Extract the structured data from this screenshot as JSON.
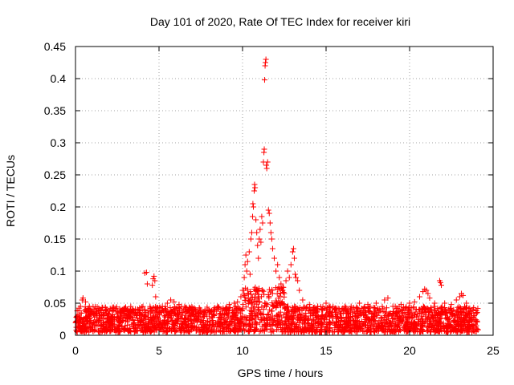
{
  "chart_data": {
    "type": "scatter",
    "title": "Day 101 of 2020, Rate Of TEC Index for receiver kiri",
    "xlabel": "GPS time / hours",
    "ylabel": "ROTI / TECUs",
    "xlim": [
      0,
      25
    ],
    "ylim": [
      0,
      0.45
    ],
    "x_ticks": [
      "0",
      "5",
      "10",
      "15",
      "20",
      "25"
    ],
    "y_ticks": [
      "0",
      "0.05",
      "0.1",
      "0.15",
      "0.2",
      "0.25",
      "0.3",
      "0.35",
      "0.4",
      "0.45"
    ],
    "grid": true,
    "marker": "+",
    "color": "#ff0000",
    "background": {
      "x_range": [
        0,
        24.1
      ],
      "band": [
        0.005,
        0.045
      ],
      "note": "dense band of points across the full day"
    },
    "series": [
      {
        "name": "ROTI",
        "points": [
          [
            0.1,
            0.038
          ],
          [
            0.3,
            0.045
          ],
          [
            0.4,
            0.055
          ],
          [
            0.45,
            0.058
          ],
          [
            0.6,
            0.052
          ],
          [
            0.8,
            0.042
          ],
          [
            1.5,
            0.04
          ],
          [
            2.3,
            0.042
          ],
          [
            2.8,
            0.04
          ],
          [
            3.5,
            0.038
          ],
          [
            4.15,
            0.097
          ],
          [
            4.25,
            0.098
          ],
          [
            4.3,
            0.08
          ],
          [
            4.6,
            0.078
          ],
          [
            4.65,
            0.088
          ],
          [
            4.7,
            0.092
          ],
          [
            4.75,
            0.085
          ],
          [
            4.8,
            0.06
          ],
          [
            5.2,
            0.045
          ],
          [
            5.5,
            0.05
          ],
          [
            5.7,
            0.055
          ],
          [
            5.9,
            0.052
          ],
          [
            6.2,
            0.048
          ],
          [
            7.0,
            0.04
          ],
          [
            7.8,
            0.038
          ],
          [
            8.5,
            0.045
          ],
          [
            9.2,
            0.048
          ],
          [
            9.5,
            0.05
          ],
          [
            9.7,
            0.052
          ],
          [
            9.9,
            0.06
          ],
          [
            10.0,
            0.07
          ],
          [
            10.1,
            0.09
          ],
          [
            10.15,
            0.11
          ],
          [
            10.2,
            0.125
          ],
          [
            10.25,
            0.1
          ],
          [
            10.3,
            0.115
          ],
          [
            10.4,
            0.13
          ],
          [
            10.45,
            0.095
          ],
          [
            10.5,
            0.15
          ],
          [
            10.55,
            0.16
          ],
          [
            10.6,
            0.185
          ],
          [
            10.62,
            0.205
          ],
          [
            10.65,
            0.2
          ],
          [
            10.7,
            0.225
          ],
          [
            10.72,
            0.235
          ],
          [
            10.75,
            0.23
          ],
          [
            10.8,
            0.18
          ],
          [
            10.85,
            0.16
          ],
          [
            10.9,
            0.14
          ],
          [
            10.95,
            0.12
          ],
          [
            11.0,
            0.15
          ],
          [
            11.05,
            0.165
          ],
          [
            11.1,
            0.145
          ],
          [
            11.15,
            0.185
          ],
          [
            11.2,
            0.175
          ],
          [
            11.25,
            0.27
          ],
          [
            11.28,
            0.285
          ],
          [
            11.3,
            0.29
          ],
          [
            11.32,
            0.398
          ],
          [
            11.35,
            0.42
          ],
          [
            11.37,
            0.425
          ],
          [
            11.4,
            0.43
          ],
          [
            11.42,
            0.265
          ],
          [
            11.45,
            0.26
          ],
          [
            11.5,
            0.27
          ],
          [
            11.55,
            0.195
          ],
          [
            11.6,
            0.19
          ],
          [
            11.65,
            0.175
          ],
          [
            11.7,
            0.16
          ],
          [
            11.75,
            0.15
          ],
          [
            11.8,
            0.135
          ],
          [
            11.9,
            0.12
          ],
          [
            12.0,
            0.1
          ],
          [
            12.1,
            0.11
          ],
          [
            12.2,
            0.09
          ],
          [
            12.3,
            0.08
          ],
          [
            12.4,
            0.07
          ],
          [
            12.5,
            0.065
          ],
          [
            12.6,
            0.085
          ],
          [
            12.7,
            0.1
          ],
          [
            12.8,
            0.09
          ],
          [
            12.9,
            0.11
          ],
          [
            13.0,
            0.13
          ],
          [
            13.05,
            0.135
          ],
          [
            13.1,
            0.12
          ],
          [
            13.15,
            0.095
          ],
          [
            13.2,
            0.09
          ],
          [
            13.3,
            0.085
          ],
          [
            13.4,
            0.07
          ],
          [
            13.6,
            0.055
          ],
          [
            14.0,
            0.048
          ],
          [
            14.5,
            0.045
          ],
          [
            15.0,
            0.05
          ],
          [
            15.5,
            0.04
          ],
          [
            16.0,
            0.042
          ],
          [
            16.5,
            0.045
          ],
          [
            17.0,
            0.05
          ],
          [
            17.5,
            0.048
          ],
          [
            18.0,
            0.05
          ],
          [
            18.5,
            0.055
          ],
          [
            18.7,
            0.058
          ],
          [
            19.0,
            0.045
          ],
          [
            19.5,
            0.048
          ],
          [
            20.0,
            0.05
          ],
          [
            20.3,
            0.052
          ],
          [
            20.6,
            0.06
          ],
          [
            20.8,
            0.068
          ],
          [
            20.9,
            0.072
          ],
          [
            21.0,
            0.07
          ],
          [
            21.1,
            0.065
          ],
          [
            21.2,
            0.058
          ],
          [
            21.5,
            0.05
          ],
          [
            21.8,
            0.085
          ],
          [
            21.85,
            0.082
          ],
          [
            21.9,
            0.078
          ],
          [
            22.1,
            0.05
          ],
          [
            22.5,
            0.048
          ],
          [
            22.8,
            0.055
          ],
          [
            23.0,
            0.06
          ],
          [
            23.1,
            0.065
          ],
          [
            23.2,
            0.062
          ],
          [
            23.4,
            0.05
          ],
          [
            23.6,
            0.042
          ],
          [
            23.8,
            0.04
          ],
          [
            24.0,
            0.038
          ]
        ]
      }
    ]
  }
}
